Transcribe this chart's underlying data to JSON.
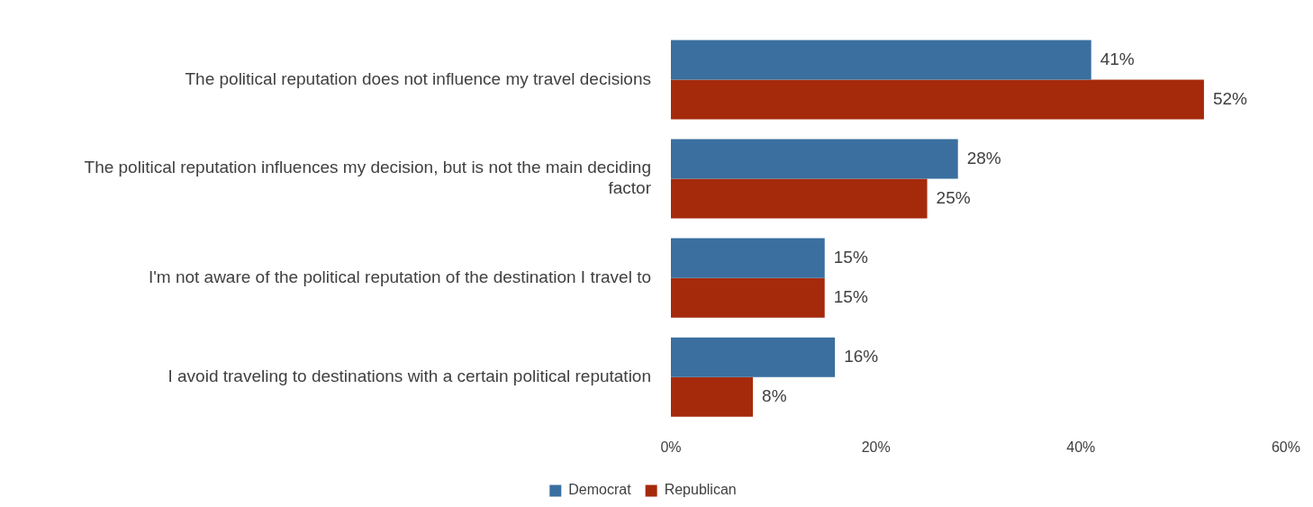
{
  "chart_data": {
    "type": "bar",
    "orientation": "horizontal",
    "categories": [
      "The political reputation does not influence my travel decisions",
      "The political reputation influences my decision, but is not the main deciding factor",
      "I'm not aware of the political reputation of the destination I travel to",
      "I avoid traveling to destinations with a certain political reputation"
    ],
    "series": [
      {
        "name": "Democrat",
        "color": "#3a6f9f",
        "values": [
          41,
          28,
          15,
          16
        ],
        "value_labels": [
          "41%",
          "28%",
          "15%",
          "16%"
        ]
      },
      {
        "name": "Republican",
        "color": "#a52a0c",
        "values": [
          52,
          25,
          15,
          8
        ],
        "value_labels": [
          "52%",
          "25%",
          "15%",
          "8%"
        ]
      }
    ],
    "xlim": [
      0,
      60
    ],
    "xticks": [
      {
        "value": 0,
        "label": "0%"
      },
      {
        "value": 20,
        "label": "20%"
      },
      {
        "value": 40,
        "label": "40%"
      },
      {
        "value": 60,
        "label": "60%"
      }
    ],
    "legend": "bottom"
  }
}
